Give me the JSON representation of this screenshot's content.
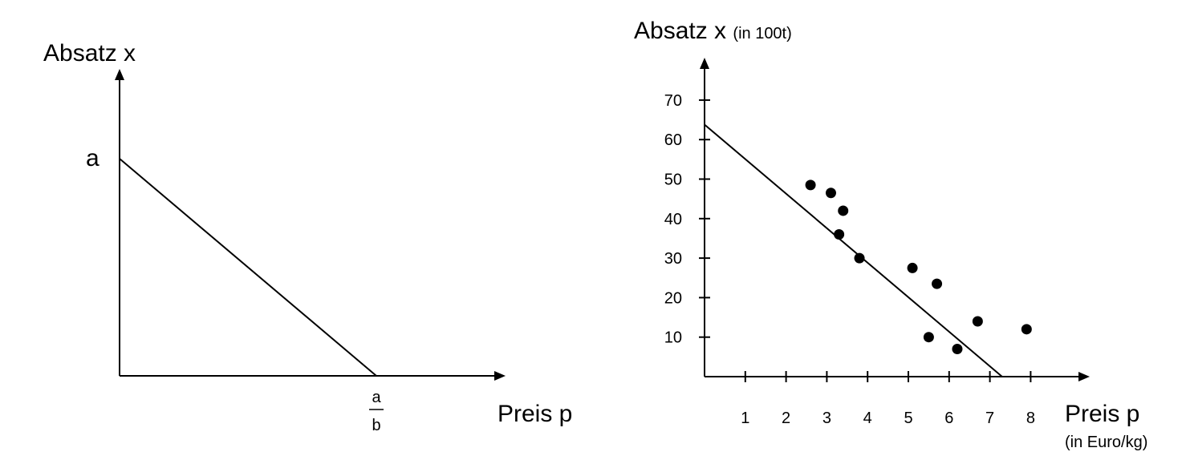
{
  "chart_data": [
    {
      "type": "line",
      "xlabel": "Preis p",
      "ylabel": "Absatz x",
      "y_intercept_label": "a",
      "x_intercept_label": {
        "numerator": "a",
        "denominator": "b"
      },
      "series": [
        {
          "x": [
            0,
            1
          ],
          "y": [
            1,
            0
          ]
        }
      ]
    },
    {
      "type": "scatter",
      "xlabel": "Preis p",
      "xlabel_unit": "(in Euro/kg)",
      "ylabel": "Absatz x",
      "ylabel_unit": "(in 100t)",
      "xlim": [
        0,
        9
      ],
      "ylim": [
        0,
        75
      ],
      "xticks": [
        1,
        2,
        3,
        4,
        5,
        6,
        7,
        8
      ],
      "yticks": [
        10,
        20,
        30,
        40,
        50,
        60,
        70
      ],
      "points": [
        {
          "x": 2.6,
          "y": 48.5
        },
        {
          "x": 3.1,
          "y": 46.5
        },
        {
          "x": 3.4,
          "y": 42
        },
        {
          "x": 3.3,
          "y": 36
        },
        {
          "x": 3.8,
          "y": 30
        },
        {
          "x": 5.1,
          "y": 27.5
        },
        {
          "x": 5.7,
          "y": 23.5
        },
        {
          "x": 5.5,
          "y": 10
        },
        {
          "x": 6.2,
          "y": 7
        },
        {
          "x": 6.7,
          "y": 14
        },
        {
          "x": 7.9,
          "y": 12
        }
      ],
      "regression_line": {
        "x": [
          0,
          7.3
        ],
        "y": [
          63.8,
          0
        ]
      }
    }
  ]
}
